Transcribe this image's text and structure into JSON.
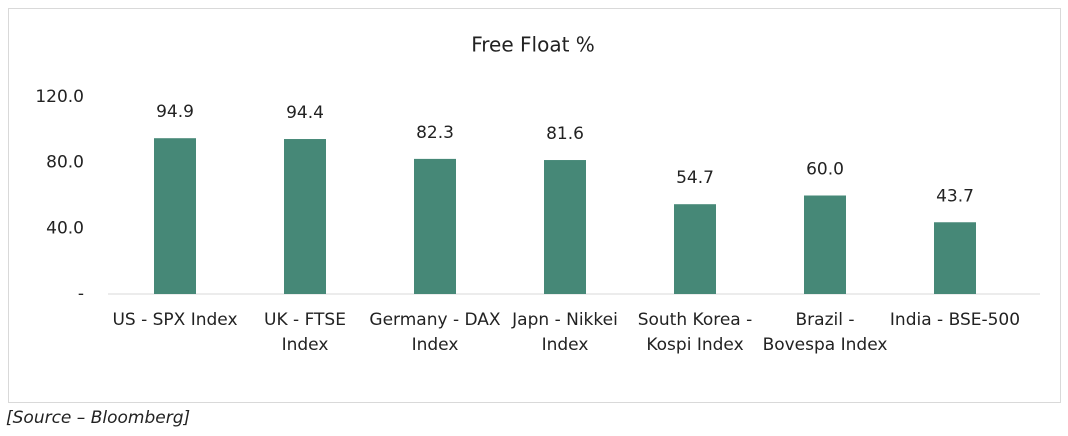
{
  "chart_data": {
    "type": "bar",
    "title": "Free Float %",
    "categories": [
      "US - SPX Index",
      "UK - FTSE Index",
      "Germany - DAX Index",
      "Japn - Nikkei Index",
      "South Korea - Kospi Index",
      "Brazil - Bovespa Index",
      "India - BSE-500"
    ],
    "values": [
      94.9,
      94.4,
      82.3,
      81.6,
      54.7,
      60.0,
      43.7
    ],
    "value_labels": [
      "94.9",
      "94.4",
      "82.3",
      "81.6",
      "54.7",
      "60.0",
      "43.7"
    ],
    "color": "#468877",
    "ylim": [
      0,
      120
    ],
    "yticks": [
      {
        "value": 0,
        "label": "-"
      },
      {
        "value": 40,
        "label": "40.0"
      },
      {
        "value": 80,
        "label": "80.0"
      },
      {
        "value": 120,
        "label": "120.0"
      }
    ],
    "grid": false,
    "source": "[Source – Bloomberg]"
  }
}
